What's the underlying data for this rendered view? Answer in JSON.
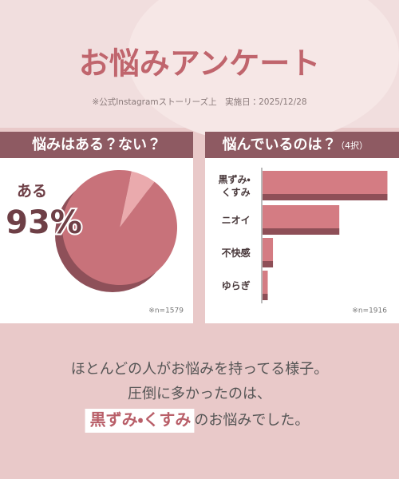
{
  "header": {
    "title": "お悩みアンケート",
    "note": "※公式Instagramストーリーズ上　実施日：2025/12/28"
  },
  "chart_data": [
    {
      "type": "pie",
      "title": "悩みはある？ない？",
      "categories": [
        "ある",
        null
      ],
      "values": [
        93,
        7
      ],
      "value_labels": [
        "93%",
        null
      ],
      "colors": [
        "#c8727a",
        "#eaaaad"
      ],
      "note": "※n=1579"
    },
    {
      "type": "bar",
      "title": "悩んでいるのは？",
      "subtitle": "（4択）",
      "categories": [
        "黒ずみ・くすみ",
        "ニオイ",
        "不快感",
        "ゆらぎ"
      ],
      "values": [
        96,
        59,
        8,
        4
      ],
      "xlim": [
        0,
        100
      ],
      "color": "#d47c83"
    }
  ],
  "bar_note": "※n=1916",
  "footer": {
    "lines": [
      "ほとんどの人がお悩みを持ってる様子。",
      "圧倒に多かったのは、"
    ],
    "highlight": "黒ずみ・くすみ",
    "tail": "のお悩みでした。"
  }
}
